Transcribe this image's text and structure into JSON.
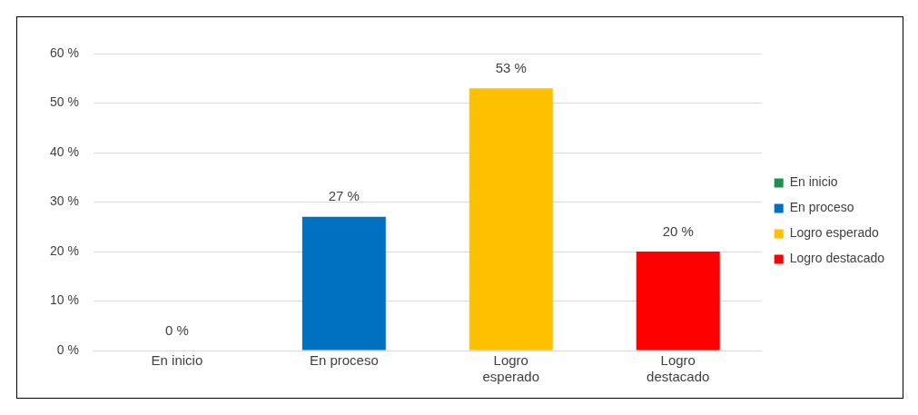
{
  "chart_data": {
    "type": "bar",
    "categories": [
      "En inicio",
      "En proceso",
      "Logro esperado",
      "Logro destacado"
    ],
    "stacked": true,
    "series": [
      {
        "name": "En inicio",
        "color": "#1e9150",
        "values": [
          0,
          null,
          null,
          null
        ],
        "value_labels": [
          "0 %",
          null,
          null,
          null
        ]
      },
      {
        "name": "En proceso",
        "color": "#0070c0",
        "values": [
          null,
          27,
          null,
          null
        ],
        "value_labels": [
          null,
          "27 %",
          null,
          null
        ]
      },
      {
        "name": "Logro esperado",
        "color": "#ffc000",
        "values": [
          null,
          null,
          53,
          null
        ],
        "value_labels": [
          null,
          null,
          "53 %",
          null
        ]
      },
      {
        "name": "Logro destacado",
        "color": "#ff0000",
        "values": [
          null,
          null,
          null,
          20
        ],
        "value_labels": [
          null,
          null,
          null,
          "20 %"
        ]
      }
    ],
    "ylim": [
      0,
      60
    ],
    "yticks": [
      {
        "value": 0,
        "label": "0 %"
      },
      {
        "value": 10,
        "label": "10 %"
      },
      {
        "value": 20,
        "label": "20 %"
      },
      {
        "value": 30,
        "label": "30 %"
      },
      {
        "value": 40,
        "label": "40 %"
      },
      {
        "value": 50,
        "label": "50 %"
      },
      {
        "value": 60,
        "label": "60 %"
      }
    ],
    "grid": "y",
    "legend": "right"
  }
}
